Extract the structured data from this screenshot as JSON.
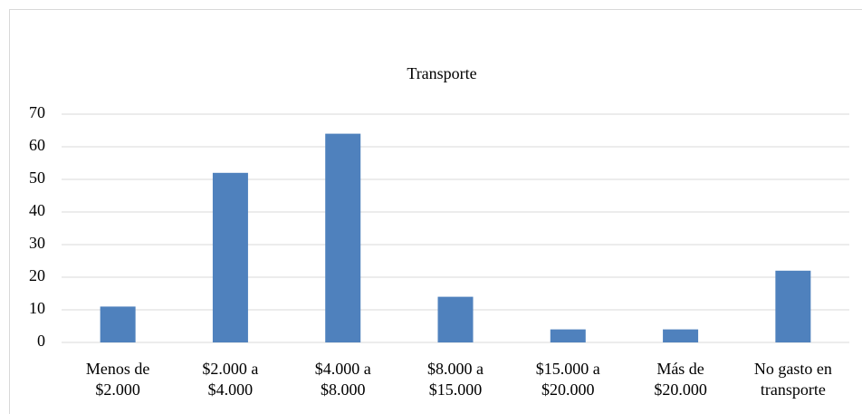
{
  "chart_data": {
    "type": "bar",
    "title": "Transporte",
    "categories": [
      "Menos de $2.000",
      "$2.000 a $4.000",
      "$4.000 a $8.000",
      "$8.000 a $15.000",
      "$15.000 a $20.000",
      "Más de $20.000",
      "No gasto en transporte"
    ],
    "values": [
      11,
      52,
      64,
      14,
      4,
      4,
      22
    ],
    "color": "#4f81bd",
    "ylim": [
      0,
      70
    ],
    "yticks": [
      0,
      10,
      20,
      30,
      40,
      50,
      60,
      70
    ],
    "grid": true
  }
}
